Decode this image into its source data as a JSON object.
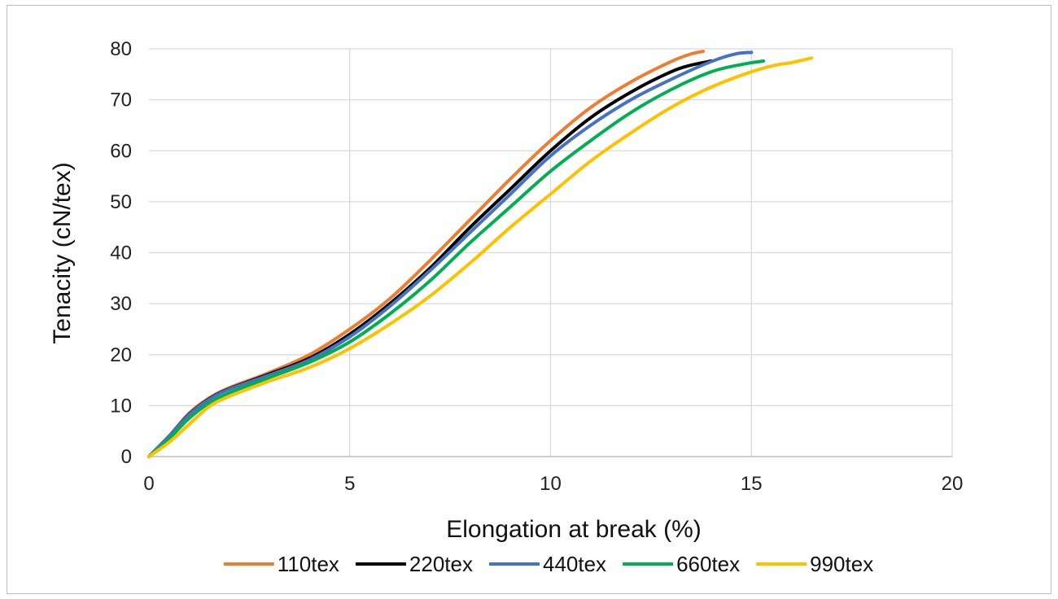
{
  "chart_data": {
    "type": "line",
    "title": "",
    "xlabel": "Elongation at break (%)",
    "ylabel": "Tenacity (cN/tex)",
    "xlim": [
      0,
      20
    ],
    "ylim": [
      0,
      80
    ],
    "xticks": [
      0,
      5,
      10,
      15,
      20
    ],
    "yticks": [
      0,
      10,
      20,
      30,
      40,
      50,
      60,
      70,
      80
    ],
    "grid": true,
    "legend_position": "bottom",
    "series": [
      {
        "name": "110tex",
        "color": "#ED7D31",
        "x": [
          0,
          0.5,
          1,
          1.5,
          2,
          3,
          4,
          5,
          6,
          7,
          8,
          9,
          10,
          11,
          12,
          13,
          13.5,
          13.8
        ],
        "y": [
          0,
          4,
          8.5,
          11.5,
          13.5,
          16.5,
          20,
          25,
          31,
          38.5,
          46.5,
          54.5,
          62,
          68.5,
          73.5,
          77.5,
          79,
          79.5
        ]
      },
      {
        "name": "220tex",
        "color": "#000000",
        "x": [
          0,
          0.5,
          1,
          1.5,
          2,
          3,
          4,
          5,
          6,
          7,
          8,
          9,
          10,
          11,
          12,
          13,
          13.5,
          14.0
        ],
        "y": [
          0,
          4,
          8.3,
          11.3,
          13.3,
          16.2,
          19.3,
          24,
          30,
          37,
          45,
          52.5,
          60,
          66.5,
          71.5,
          75.5,
          76.8,
          77.6
        ]
      },
      {
        "name": "440tex",
        "color": "#4472C4",
        "x": [
          0,
          0.5,
          1,
          1.5,
          2,
          3,
          4,
          5,
          6,
          7,
          8,
          9,
          10,
          11,
          12,
          13,
          14,
          14.6,
          15.0
        ],
        "y": [
          0,
          4,
          8.2,
          11.2,
          13.2,
          16.0,
          19.0,
          23.5,
          29.5,
          36.5,
          44,
          51.5,
          59,
          65,
          70,
          74,
          77.5,
          79,
          79.3
        ]
      },
      {
        "name": "660tex",
        "color": "#00B050",
        "x": [
          0,
          0.5,
          1,
          1.5,
          2,
          3,
          4,
          5,
          6,
          7,
          8,
          9,
          10,
          11,
          12,
          13,
          14,
          14.8,
          15.3
        ],
        "y": [
          0,
          3.5,
          7.5,
          10.5,
          12.5,
          15.5,
          18.5,
          22.5,
          28,
          34.5,
          42,
          49,
          56,
          62,
          67.5,
          72,
          75.5,
          77,
          77.6
        ]
      },
      {
        "name": "990tex",
        "color": "#FFC000",
        "x": [
          0,
          0.5,
          1,
          1.5,
          2,
          3,
          4,
          5,
          6,
          7,
          8,
          9,
          10,
          11,
          12,
          13,
          14,
          15,
          15.6,
          16.0,
          16.5
        ],
        "y": [
          0,
          2.8,
          6.3,
          9.8,
          11.8,
          14.8,
          17.5,
          21.2,
          26,
          31.5,
          38,
          45,
          51.5,
          58,
          63.5,
          68.5,
          72.5,
          75.5,
          76.8,
          77.3,
          78.2
        ]
      }
    ]
  }
}
